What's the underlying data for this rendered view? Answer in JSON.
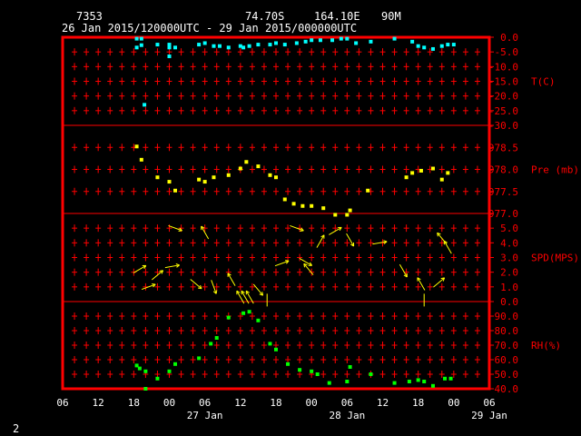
{
  "header": {
    "station_id": "7353",
    "lat": "74.70S",
    "lon": "164.10E",
    "elev": "90M",
    "period": "26 Jan 2015/120000UTC - 29 Jan 2015/000000UTC"
  },
  "page_number": "2",
  "colors": {
    "frame": "#ff0000",
    "temperature": "#00ffff",
    "pressure": "#ffff00",
    "wind": "#ffff00",
    "humidity": "#00ff00",
    "axis_text": "#ff0000",
    "label_text": "#ffffff"
  },
  "chart_data": {
    "type": "scatter",
    "x_axis": {
      "unit": "hours since 26 Jan 06UTC",
      "range": [
        0,
        72
      ],
      "ticks": [
        0,
        6,
        12,
        18,
        24,
        30,
        36,
        42,
        48,
        54,
        60,
        66,
        72
      ],
      "tick_labels": [
        "06",
        "12",
        "18",
        "00",
        "06",
        "12",
        "18",
        "00",
        "06",
        "12",
        "18",
        "00",
        "06"
      ],
      "day_labels": [
        {
          "x": 24,
          "text": "27 Jan"
        },
        {
          "x": 48,
          "text": "28 Jan"
        },
        {
          "x": 72,
          "text": "29 Jan"
        }
      ]
    },
    "panels": [
      {
        "id": "temperature",
        "label": "T(C)",
        "ylim": [
          -30,
          0
        ],
        "ticks": [
          "0.0",
          "-5.0",
          "-10.0",
          "-15.0",
          "-20.0",
          "-25.0",
          "-30.0"
        ],
        "tick_values": [
          0,
          -5,
          -10,
          -15,
          -20,
          -25,
          -30
        ],
        "points": [
          [
            12.5,
            -0.5
          ],
          [
            13.3,
            -0.5
          ],
          [
            12.5,
            -3.5
          ],
          [
            13.3,
            -2.7
          ],
          [
            13.8,
            -23.0
          ],
          [
            16.0,
            -2.5
          ],
          [
            18.0,
            -2.5
          ],
          [
            18.0,
            -3.5
          ],
          [
            18.0,
            -6.5
          ],
          [
            19.0,
            -3.5
          ],
          [
            23.0,
            -2.5
          ],
          [
            24.0,
            -2.0
          ],
          [
            25.5,
            -3.0
          ],
          [
            26.5,
            -3.0
          ],
          [
            28.0,
            -3.5
          ],
          [
            30.0,
            -3.0
          ],
          [
            30.5,
            -3.5
          ],
          [
            31.5,
            -3.0
          ],
          [
            33.0,
            -2.5
          ],
          [
            35.0,
            -2.5
          ],
          [
            36.0,
            -2.0
          ],
          [
            37.5,
            -2.5
          ],
          [
            39.5,
            -2.0
          ],
          [
            41.0,
            -1.5
          ],
          [
            42.0,
            -1.0
          ],
          [
            43.5,
            -1.0
          ],
          [
            45.5,
            -1.0
          ],
          [
            47.0,
            -0.5
          ],
          [
            48.0,
            -0.5
          ],
          [
            49.5,
            -2.0
          ],
          [
            52.0,
            -1.5
          ],
          [
            56.0,
            -0.5
          ],
          [
            59.0,
            -1.5
          ],
          [
            60.0,
            -3.0
          ],
          [
            61.0,
            -3.5
          ],
          [
            62.5,
            -4.0
          ],
          [
            64.0,
            -3.0
          ],
          [
            65.0,
            -2.5
          ],
          [
            66.0,
            -2.5
          ]
        ]
      },
      {
        "id": "pressure",
        "label": "Pre (mb)",
        "ylim": [
          977.0,
          979.0
        ],
        "ticks": [
          "978.5",
          "978.0",
          "977.5",
          "977.0"
        ],
        "tick_values": [
          978.5,
          978.0,
          977.5,
          977.0
        ],
        "points": [
          [
            12.5,
            978.52
          ],
          [
            13.3,
            978.22
          ],
          [
            16.0,
            977.82
          ],
          [
            18.0,
            977.72
          ],
          [
            19.0,
            977.52
          ],
          [
            23.0,
            977.77
          ],
          [
            24.0,
            977.72
          ],
          [
            25.5,
            977.82
          ],
          [
            28.0,
            977.87
          ],
          [
            30.0,
            978.02
          ],
          [
            31.0,
            978.17
          ],
          [
            33.0,
            978.07
          ],
          [
            35.0,
            977.87
          ],
          [
            36.0,
            977.82
          ],
          [
            37.5,
            977.32
          ],
          [
            39.0,
            977.22
          ],
          [
            40.5,
            977.17
          ],
          [
            42.0,
            977.17
          ],
          [
            44.0,
            977.12
          ],
          [
            46.0,
            976.97
          ],
          [
            48.0,
            976.97
          ],
          [
            48.5,
            977.07
          ],
          [
            51.5,
            977.52
          ],
          [
            58.0,
            977.82
          ],
          [
            59.0,
            977.92
          ],
          [
            60.5,
            977.97
          ],
          [
            62.5,
            978.02
          ],
          [
            64.0,
            977.77
          ],
          [
            65.0,
            977.92
          ]
        ]
      },
      {
        "id": "wind",
        "label": "SPD(MPS)",
        "ylim": [
          0,
          6
        ],
        "ticks": [
          "5.0",
          "4.0",
          "3.0",
          "2.0",
          "1.0",
          "0.0"
        ],
        "tick_values": [
          5,
          4,
          3,
          2,
          1,
          0
        ],
        "barbs": [
          {
            "x": 13.0,
            "spd": 2.2,
            "dir": 60
          },
          {
            "x": 14.5,
            "spd": 1.0,
            "dir": 70
          },
          {
            "x": 16.0,
            "spd": 1.8,
            "dir": 50
          },
          {
            "x": 18.5,
            "spd": 2.4,
            "dir": 80
          },
          {
            "x": 19.0,
            "spd": 5.0,
            "dir": 110
          },
          {
            "x": 22.5,
            "spd": 1.2,
            "dir": 130
          },
          {
            "x": 24.0,
            "spd": 4.7,
            "dir": 330
          },
          {
            "x": 25.5,
            "spd": 1.0,
            "dir": 160
          },
          {
            "x": 28.5,
            "spd": 1.5,
            "dir": 330
          },
          {
            "x": 30.0,
            "spd": 0.3,
            "dir": 330
          },
          {
            "x": 30.8,
            "spd": 0.3,
            "dir": 330
          },
          {
            "x": 31.6,
            "spd": 0.3,
            "dir": 330
          },
          {
            "x": 33.0,
            "spd": 0.8,
            "dir": 140
          },
          {
            "x": 34.5,
            "spd": 0.1,
            "dir": 0
          },
          {
            "x": 37.0,
            "spd": 2.6,
            "dir": 70
          },
          {
            "x": 39.5,
            "spd": 5.0,
            "dir": 110
          },
          {
            "x": 41.0,
            "spd": 2.7,
            "dir": 120
          },
          {
            "x": 41.5,
            "spd": 2.2,
            "dir": 320
          },
          {
            "x": 43.5,
            "spd": 4.1,
            "dir": 30
          },
          {
            "x": 46.0,
            "spd": 4.8,
            "dir": 60
          },
          {
            "x": 48.5,
            "spd": 4.2,
            "dir": 150
          },
          {
            "x": 53.5,
            "spd": 4.0,
            "dir": 80
          },
          {
            "x": 57.5,
            "spd": 2.1,
            "dir": 150
          },
          {
            "x": 60.5,
            "spd": 1.2,
            "dir": 330
          },
          {
            "x": 61.0,
            "spd": 0.1,
            "dir": 0
          },
          {
            "x": 63.5,
            "spd": 1.3,
            "dir": 50
          },
          {
            "x": 64.0,
            "spd": 4.3,
            "dir": 320
          },
          {
            "x": 65.0,
            "spd": 3.7,
            "dir": 330
          }
        ]
      },
      {
        "id": "humidity",
        "label": "RH(%)",
        "ylim": [
          40,
          100
        ],
        "ticks": [
          "90.0",
          "80.0",
          "70.0",
          "60.0",
          "50.0",
          "40.0"
        ],
        "tick_values": [
          90,
          80,
          70,
          60,
          50,
          40
        ],
        "points": [
          [
            12.5,
            56.0
          ],
          [
            13.0,
            54.0
          ],
          [
            14.0,
            52.0
          ],
          [
            14.0,
            40.0
          ],
          [
            16.0,
            47.0
          ],
          [
            18.0,
            52.0
          ],
          [
            19.0,
            57.0
          ],
          [
            23.0,
            61.0
          ],
          [
            25.0,
            71.0
          ],
          [
            26.0,
            75.0
          ],
          [
            28.0,
            89.0
          ],
          [
            30.5,
            92.0
          ],
          [
            31.5,
            93.0
          ],
          [
            33.0,
            87.0
          ],
          [
            35.0,
            71.0
          ],
          [
            36.0,
            67.0
          ],
          [
            38.0,
            57.0
          ],
          [
            40.0,
            53.0
          ],
          [
            42.0,
            52.0
          ],
          [
            43.0,
            50.0
          ],
          [
            45.0,
            44.0
          ],
          [
            48.0,
            45.0
          ],
          [
            48.5,
            55.0
          ],
          [
            52.0,
            50.0
          ],
          [
            56.0,
            44.0
          ],
          [
            58.5,
            45.0
          ],
          [
            60.0,
            46.0
          ],
          [
            61.0,
            45.0
          ],
          [
            62.5,
            42.0
          ],
          [
            64.5,
            47.0
          ],
          [
            65.5,
            47.0
          ]
        ]
      }
    ]
  }
}
